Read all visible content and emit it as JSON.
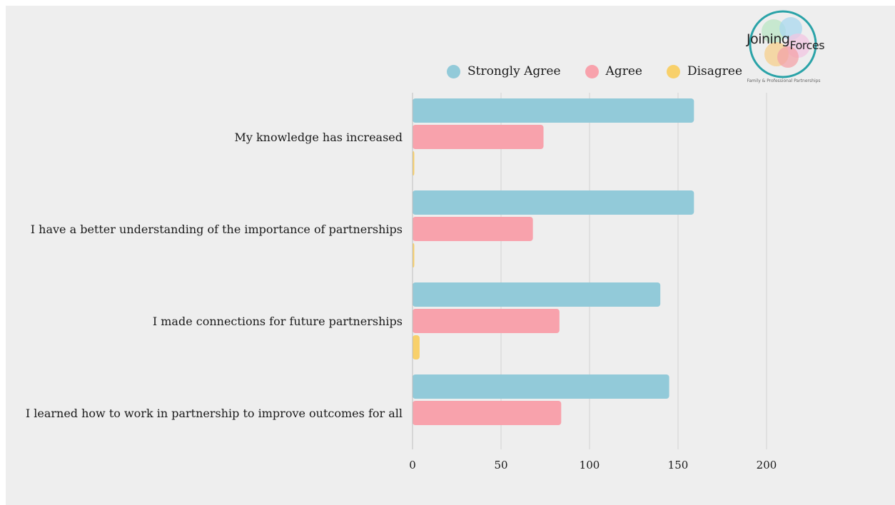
{
  "logo": {
    "word1": "Joining",
    "word2": "Forces",
    "tagline": "Family & Professional Partnerships"
  },
  "chart_data": {
    "type": "bar",
    "orientation": "horizontal",
    "title": "",
    "xlabel": "",
    "ylabel": "",
    "categories": [
      "My knowledge has increased",
      "I have a better understanding of the importance of partnerships",
      "I made connections for future partnerships",
      "I learned how to work in partnership to improve outcomes for all"
    ],
    "series": [
      {
        "name": "Strongly Agree",
        "color": "#92cad9",
        "values": [
          159,
          159,
          140,
          145
        ]
      },
      {
        "name": "Agree",
        "color": "#f8a2ac",
        "values": [
          74,
          68,
          83,
          84
        ]
      },
      {
        "name": "Disagree",
        "color": "#f8d06a",
        "values": [
          1,
          1,
          4,
          0
        ]
      }
    ],
    "xlim": [
      0,
      200
    ],
    "ticks": [
      "0",
      "50",
      "100",
      "150",
      "200"
    ],
    "tick_values": [
      0,
      50,
      100,
      150,
      200
    ],
    "grid": true,
    "legend": "top"
  }
}
